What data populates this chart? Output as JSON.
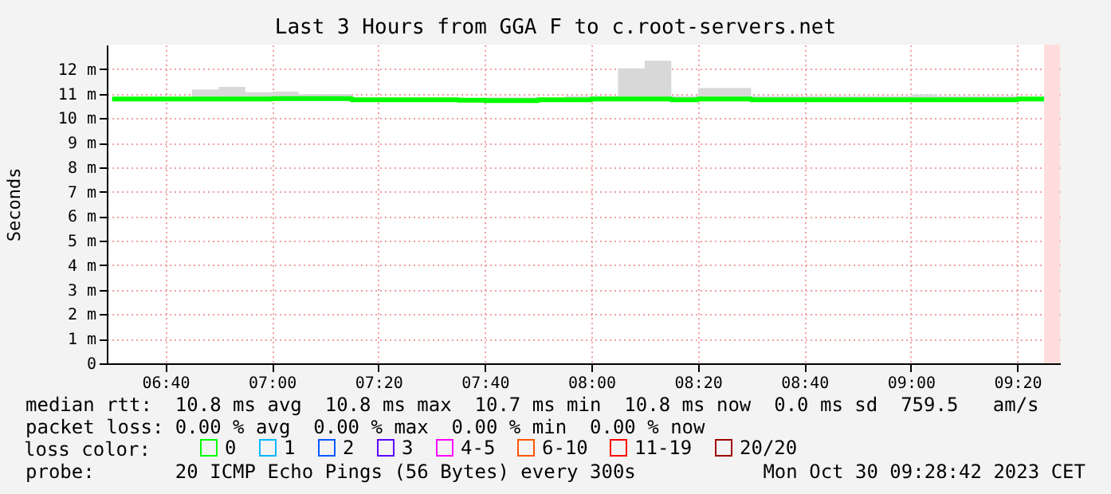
{
  "chart_data": {
    "type": "step",
    "title": "Last 3 Hours from GGA F to c.root-servers.net",
    "ylabel": "Seconds",
    "legend_title": "loss color:",
    "legend": "bottom left",
    "grid": true,
    "x": [
      "2023-10-30T06:30",
      "2023-10-30T06:35",
      "2023-10-30T06:40",
      "2023-10-30T06:45",
      "2023-10-30T06:50",
      "2023-10-30T06:55",
      "2023-10-30T07:00",
      "2023-10-30T07:05",
      "2023-10-30T07:10",
      "2023-10-30T07:15",
      "2023-10-30T07:20",
      "2023-10-30T07:25",
      "2023-10-30T07:30",
      "2023-10-30T07:35",
      "2023-10-30T07:40",
      "2023-10-30T07:45",
      "2023-10-30T07:50",
      "2023-10-30T07:55",
      "2023-10-30T08:00",
      "2023-10-30T08:05",
      "2023-10-30T08:10",
      "2023-10-30T08:15",
      "2023-10-30T08:20",
      "2023-10-30T08:25",
      "2023-10-30T08:30",
      "2023-10-30T08:35",
      "2023-10-30T08:40",
      "2023-10-30T08:45",
      "2023-10-30T08:50",
      "2023-10-30T08:55",
      "2023-10-30T09:00",
      "2023-10-30T09:05",
      "2023-10-30T09:10",
      "2023-10-30T09:15",
      "2023-10-30T09:20",
      "2023-10-30T09:25"
    ],
    "series": [
      {
        "name": "0",
        "color": "#00ff00",
        "values": [
          10.78,
          10.78,
          10.78,
          10.78,
          10.78,
          10.78,
          10.8,
          10.8,
          10.8,
          10.75,
          10.75,
          10.75,
          10.75,
          10.73,
          10.72,
          10.72,
          10.75,
          10.75,
          10.78,
          10.78,
          10.78,
          10.75,
          10.78,
          10.78,
          10.75,
          10.75,
          10.75,
          10.75,
          10.75,
          10.75,
          10.75,
          10.75,
          10.75,
          10.75,
          10.78,
          10.78
        ],
        "lower": [
          10.7,
          10.7,
          10.7,
          10.7,
          10.7,
          10.7,
          10.7,
          10.7,
          10.7,
          10.7,
          10.7,
          10.7,
          10.7,
          10.7,
          10.7,
          10.7,
          10.7,
          10.7,
          10.7,
          10.7,
          10.7,
          10.7,
          10.7,
          10.7,
          10.7,
          10.7,
          10.7,
          10.7,
          10.7,
          10.7,
          10.7,
          10.7,
          10.7,
          10.7,
          10.7,
          10.7
        ],
        "upper": [
          10.82,
          10.82,
          10.85,
          11.17,
          11.28,
          11.06,
          11.08,
          10.98,
          10.98,
          10.85,
          10.85,
          10.85,
          10.85,
          10.82,
          10.85,
          10.85,
          10.83,
          10.9,
          10.9,
          12.03,
          12.34,
          10.9,
          11.23,
          11.23,
          10.9,
          10.9,
          10.9,
          10.9,
          10.9,
          10.9,
          10.97,
          10.9,
          10.9,
          10.9,
          10.85,
          10.85
        ]
      },
      {
        "name": "1",
        "color": "#00b8ff",
        "values": [
          null,
          null,
          null,
          null,
          null,
          null,
          null,
          null,
          null,
          null,
          null,
          null,
          null,
          null,
          null,
          null,
          null,
          null,
          null,
          null,
          null,
          null,
          null,
          null,
          null,
          null,
          null,
          null,
          null,
          null,
          null,
          null,
          null,
          null,
          null,
          null
        ]
      },
      {
        "name": "2",
        "color": "#0059ff",
        "values": [
          null,
          null,
          null,
          null,
          null,
          null,
          null,
          null,
          null,
          null,
          null,
          null,
          null,
          null,
          null,
          null,
          null,
          null,
          null,
          null,
          null,
          null,
          null,
          null,
          null,
          null,
          null,
          null,
          null,
          null,
          null,
          null,
          null,
          null,
          null,
          null
        ]
      },
      {
        "name": "3",
        "color": "#5e00ff",
        "values": [
          null,
          null,
          null,
          null,
          null,
          null,
          null,
          null,
          null,
          null,
          null,
          null,
          null,
          null,
          null,
          null,
          null,
          null,
          null,
          null,
          null,
          null,
          null,
          null,
          null,
          null,
          null,
          null,
          null,
          null,
          null,
          null,
          null,
          null,
          null,
          null
        ]
      },
      {
        "name": "4-5",
        "color": "#ff00ff",
        "values": [
          null,
          null,
          null,
          null,
          null,
          null,
          null,
          null,
          null,
          null,
          null,
          null,
          null,
          null,
          null,
          null,
          null,
          null,
          null,
          null,
          null,
          null,
          null,
          null,
          null,
          null,
          null,
          null,
          null,
          null,
          null,
          null,
          null,
          null,
          null,
          null
        ]
      },
      {
        "name": "6-10",
        "color": "#ff5500",
        "values": [
          null,
          null,
          null,
          null,
          null,
          null,
          null,
          null,
          null,
          null,
          null,
          null,
          null,
          null,
          null,
          null,
          null,
          null,
          null,
          null,
          null,
          null,
          null,
          null,
          null,
          null,
          null,
          null,
          null,
          null,
          null,
          null,
          null,
          null,
          null,
          null
        ]
      },
      {
        "name": "11-19",
        "color": "#ff0000",
        "values": [
          null,
          null,
          null,
          null,
          null,
          null,
          null,
          null,
          null,
          null,
          null,
          null,
          null,
          null,
          null,
          null,
          null,
          null,
          null,
          null,
          null,
          null,
          null,
          null,
          null,
          null,
          null,
          null,
          null,
          null,
          null,
          null,
          null,
          null,
          null,
          null
        ]
      },
      {
        "name": "20/20",
        "color": "#a10000",
        "values": [
          null,
          null,
          null,
          null,
          null,
          null,
          null,
          null,
          null,
          null,
          null,
          null,
          null,
          null,
          null,
          null,
          null,
          null,
          null,
          null,
          null,
          null,
          null,
          null,
          null,
          null,
          null,
          null,
          null,
          null,
          null,
          null,
          null,
          null,
          null,
          null
        ]
      }
    ],
    "xlim": [
      "2023-10-30T06:29",
      "2023-10-30T09:28"
    ],
    "xticks": [
      {
        "value": "2023-10-30T06:40",
        "label": "06:40"
      },
      {
        "value": "2023-10-30T07:00",
        "label": "07:00"
      },
      {
        "value": "2023-10-30T07:20",
        "label": "07:20"
      },
      {
        "value": "2023-10-30T07:40",
        "label": "07:40"
      },
      {
        "value": "2023-10-30T08:00",
        "label": "08:00"
      },
      {
        "value": "2023-10-30T08:20",
        "label": "08:20"
      },
      {
        "value": "2023-10-30T08:40",
        "label": "08:40"
      },
      {
        "value": "2023-10-30T09:00",
        "label": "09:00"
      },
      {
        "value": "2023-10-30T09:20",
        "label": "09:20"
      }
    ],
    "ylim": [
      0,
      13
    ],
    "yticks": [
      0,
      {
        "value": 1,
        "label": "1 m"
      },
      {
        "value": 2,
        "label": "2 m"
      },
      {
        "value": 3,
        "label": "3 m"
      },
      {
        "value": 4,
        "label": "4 m"
      },
      {
        "value": 5,
        "label": "5 m"
      },
      {
        "value": 6,
        "label": "6 m"
      },
      {
        "value": 7,
        "label": "7 m"
      },
      {
        "value": 8,
        "label": "8 m"
      },
      {
        "value": 9,
        "label": "9 m"
      },
      {
        "value": 10,
        "label": "10 m"
      },
      {
        "value": 11,
        "label": "11 m"
      },
      {
        "value": 12,
        "label": "12 m"
      }
    ],
    "bands": [
      {
        "axis": "x",
        "from": "2023-10-30T09:25",
        "to": "2023-10-30T09:28",
        "color": "#ffdddd"
      }
    ],
    "annotations": [
      "median rtt:  10.8 ms avg  10.8 ms max  10.7 ms min  10.8 ms now  0.0 ms sd  759.5   am/s",
      "packet loss: 0.00 % avg  0.00 % max  0.00 % min  0.00 % now",
      "probe:       20 ICMP Echo Pings (56 Bytes) every 300s",
      "Mon Oct 30 09:28:42 2023 CET"
    ]
  }
}
